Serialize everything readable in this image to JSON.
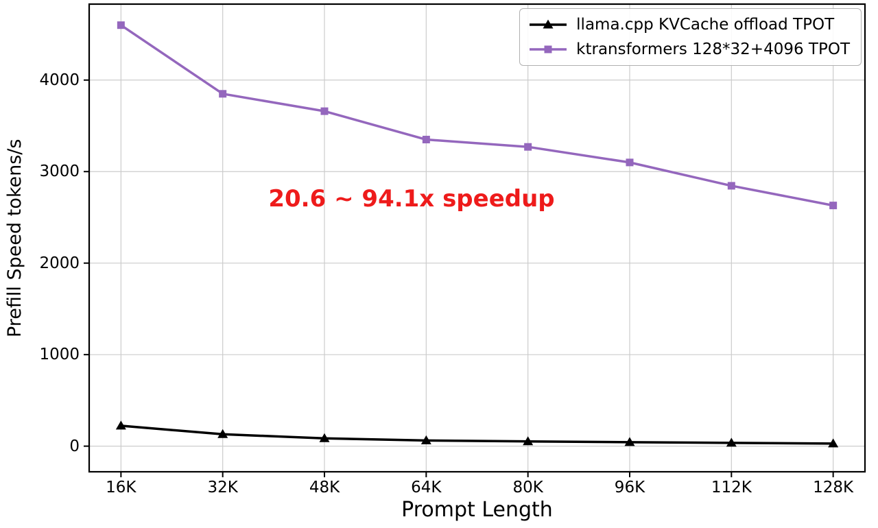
{
  "chart_data": {
    "type": "line",
    "title": "",
    "xlabel": "Prompt Length",
    "ylabel": "Prefill Speed tokens/s",
    "x_values": [
      16,
      32,
      48,
      64,
      80,
      96,
      112,
      128
    ],
    "x_tick_labels": [
      "16K",
      "32K",
      "48K",
      "64K",
      "80K",
      "96K",
      "112K",
      "128K"
    ],
    "y_ticks": [
      0,
      1000,
      2000,
      3000,
      4000
    ],
    "xlim": [
      11,
      133
    ],
    "ylim": [
      -280,
      4830
    ],
    "grid": true,
    "grid_color": "#cccccc",
    "legend_position": "upper right",
    "annotation": {
      "text": "20.6 ~ 94.1x speedup",
      "color": "#ee1b1b"
    },
    "series": [
      {
        "name": "llama.cpp KVCache offload TPOT",
        "color": "#000000",
        "marker": "triangle",
        "values": [
          223,
          130,
          85,
          62,
          52,
          43,
          36,
          28
        ]
      },
      {
        "name": "ktransformers 128*32+4096 TPOT",
        "color": "#9467bd",
        "marker": "square",
        "values": [
          4600,
          3850,
          3660,
          3350,
          3270,
          3100,
          2845,
          2630
        ]
      }
    ]
  }
}
